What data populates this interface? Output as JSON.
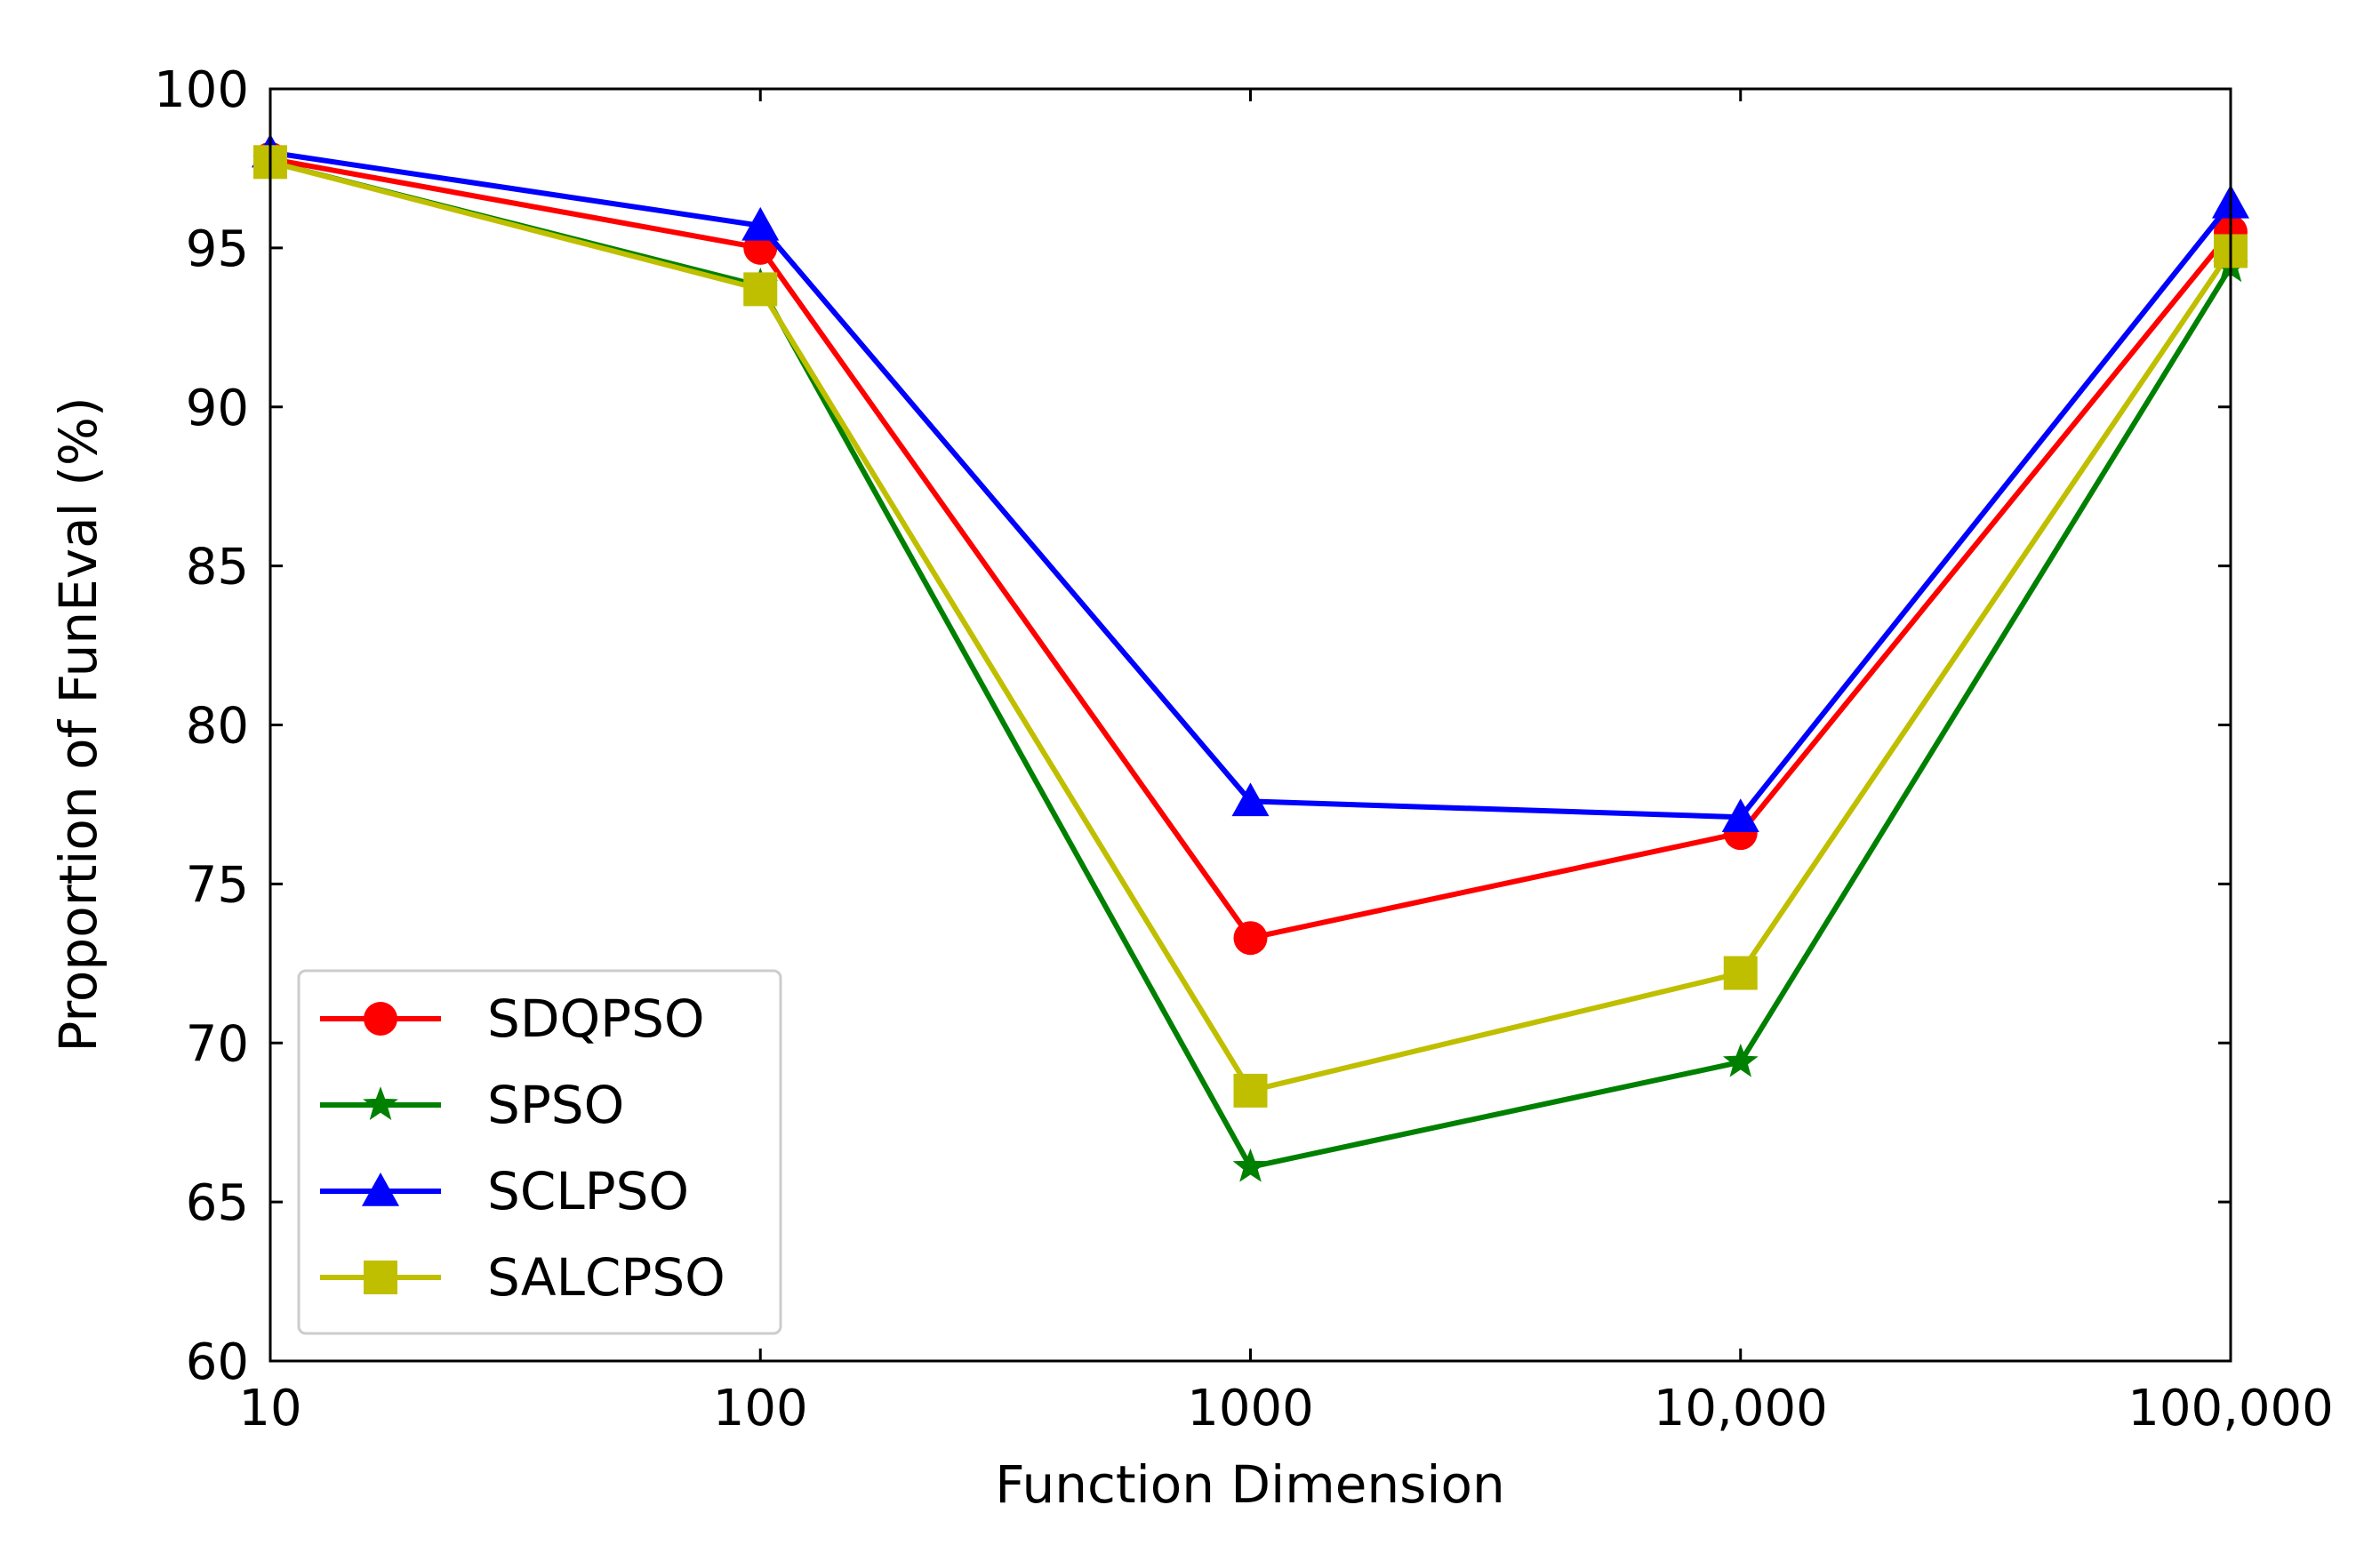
{
  "chart_data": {
    "type": "line",
    "title": "",
    "xlabel": "Function Dimension",
    "ylabel": "Proportion of FunEval (%)",
    "x_scale": "log",
    "x": [
      10,
      100,
      1000,
      10000,
      100000
    ],
    "x_tick_labels": [
      "10",
      "100",
      "1000",
      "10,000",
      "100,000"
    ],
    "ylim": [
      60,
      100
    ],
    "y_ticks": [
      60,
      65,
      70,
      75,
      80,
      85,
      90,
      95,
      100
    ],
    "grid": false,
    "legend_position": "lower-left",
    "series": [
      {
        "name": "SDQPSO",
        "color": "#ff0000",
        "marker": "circle",
        "values": [
          97.8,
          95.0,
          73.3,
          76.6,
          95.5
        ]
      },
      {
        "name": "SPSO",
        "color": "#008000",
        "marker": "star",
        "values": [
          97.7,
          93.8,
          66.1,
          69.4,
          94.4
        ]
      },
      {
        "name": "SCLPSO",
        "color": "#0000ff",
        "marker": "triangle",
        "values": [
          98.0,
          95.7,
          77.6,
          77.1,
          96.4
        ]
      },
      {
        "name": "SALCPSO",
        "color": "#bfbf00",
        "marker": "square",
        "values": [
          97.7,
          93.7,
          68.5,
          72.2,
          94.9
        ]
      }
    ]
  }
}
